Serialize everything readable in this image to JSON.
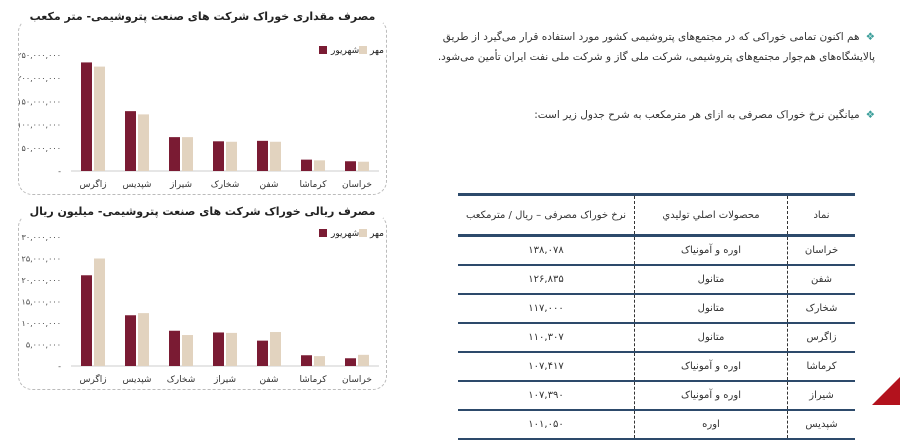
{
  "text": {
    "para1": "هم اکنون تمامی خوراکی که در مجتمع‌های پتروشیمی کشور مورد استفاده قرار می‌گیرد از طریق پالایشگاه‌های هم‌جوار مجتمع‌های پتروشیمی، شرکت ملی گاز و شرکت ملی نفت ایران تأمین می‌شود.",
    "para2": "میانگین نرخ خوراک مصرفی به ازای هر مترمکعب به شرح جدول زیر است:"
  },
  "table": {
    "headers": [
      "نماد",
      "محصولات اصلي توليدي",
      "نرخ خوراک مصرفی – ریال / مترمکعب"
    ],
    "rows": [
      [
        "خراسان",
        "اوره و آمونیاک",
        "۱۳۸,۰۷۸"
      ],
      [
        "شفن",
        "متانول",
        "۱۲۶,۸۳۵"
      ],
      [
        "شخارک",
        "متانول",
        "۱۱۷,۰۰۰"
      ],
      [
        "زاگرس",
        "متانول",
        "۱۱۰,۳۰۷"
      ],
      [
        "کرماشا",
        "اوره و آمونیاک",
        "۱۰۷,۴۱۷"
      ],
      [
        "شیراز",
        "اوره و آمونیاک",
        "۱۰۷,۳۹۰"
      ],
      [
        "شپدیس",
        "اوره",
        "۱۰۱,۰۵۰"
      ]
    ]
  },
  "chart_data": [
    {
      "type": "bar",
      "title": "مصرف مقداری خوراک شرکت های صنعت پتروشیمی- متر مکعب",
      "categories": [
        "زاگرس",
        "شپدیس",
        "شیراز",
        "شخارک",
        "شفن",
        "کرماشا",
        "خراسان"
      ],
      "series": [
        {
          "name": "شهریور",
          "color": "#7a1b33",
          "values": [
            234000000,
            129000000,
            73000000,
            64000000,
            65000000,
            24500000,
            21000000
          ]
        },
        {
          "name": "مهر",
          "color": "#e2d3bf",
          "values": [
            225000000,
            122000000,
            73000000,
            63000000,
            63000000,
            23000000,
            20000000
          ]
        }
      ],
      "ylim": [
        0,
        250000000
      ],
      "yticks": [
        "-",
        "۵۰,۰۰۰,۰۰۰",
        "۱۰۰,۰۰۰,۰۰۰",
        "۱۵۰,۰۰۰,۰۰۰",
        "۲۰۰,۰۰۰,۰۰۰",
        "۲۵۰,۰۰۰,۰۰۰"
      ],
      "legend": "top-right",
      "grid": false
    },
    {
      "type": "bar",
      "title": "مصرف ریالی خوراک شرکت های صنعت پتروشیمی- میلیون ریال",
      "categories": [
        "زاگرس",
        "شپدیس",
        "شخارک",
        "شیراز",
        "شفن",
        "کرماشا",
        "خراسان"
      ],
      "series": [
        {
          "name": "شهریور",
          "color": "#7a1b33",
          "values": [
            21100000,
            11800000,
            8200000,
            7800000,
            5900000,
            2500000,
            1800000
          ]
        },
        {
          "name": "مهر",
          "color": "#e2d3bf",
          "values": [
            25000000,
            12300000,
            7200000,
            7700000,
            7900000,
            2300000,
            2600000
          ]
        }
      ],
      "ylim": [
        0,
        30000000
      ],
      "yticks": [
        "-",
        "۵,۰۰۰,۰۰۰",
        "۱۰,۰۰۰,۰۰۰",
        "۱۵,۰۰۰,۰۰۰",
        "۲۰,۰۰۰,۰۰۰",
        "۲۵,۰۰۰,۰۰۰",
        "۳۰,۰۰۰,۰۰۰"
      ],
      "legend": "top-right",
      "grid": false
    }
  ]
}
